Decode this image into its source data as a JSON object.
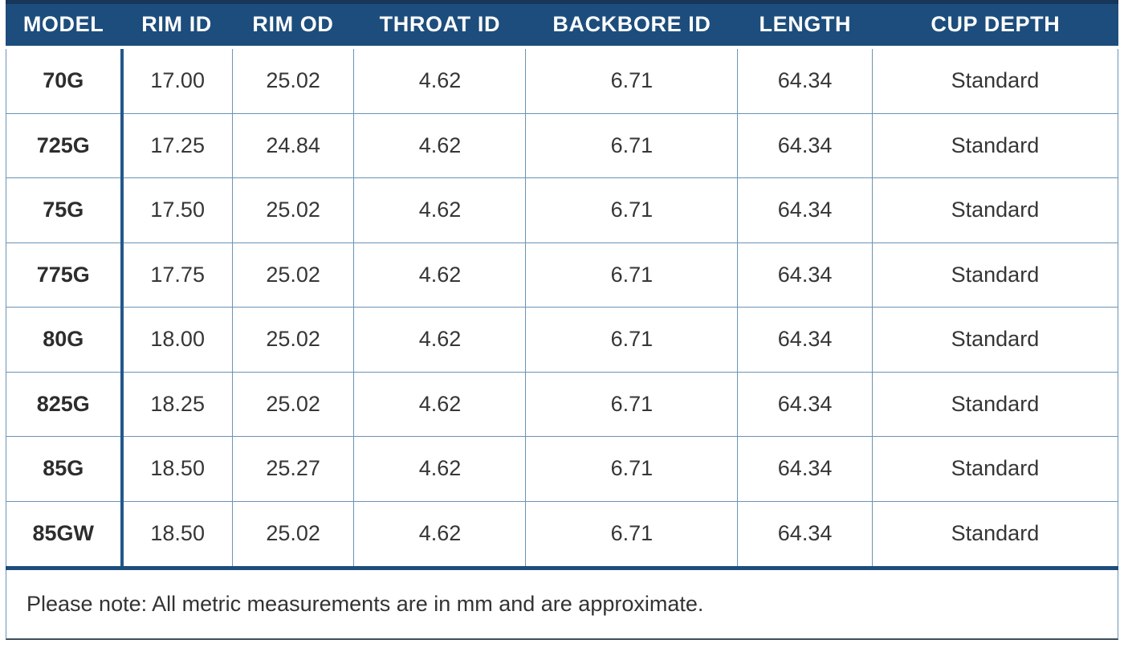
{
  "table": {
    "columns": [
      {
        "key": "model",
        "label": "MODEL"
      },
      {
        "key": "rim_id",
        "label": "RIM ID"
      },
      {
        "key": "rim_od",
        "label": "RIM OD"
      },
      {
        "key": "throat_id",
        "label": "THROAT ID"
      },
      {
        "key": "backbore_id",
        "label": "BACKBORE ID"
      },
      {
        "key": "length",
        "label": "LENGTH"
      },
      {
        "key": "cup_depth",
        "label": "CUP DEPTH"
      }
    ],
    "rows": [
      [
        "70G",
        "17.00",
        "25.02",
        "4.62",
        "6.71",
        "64.34",
        "Standard"
      ],
      [
        "725G",
        "17.25",
        "24.84",
        "4.62",
        "6.71",
        "64.34",
        "Standard"
      ],
      [
        "75G",
        "17.50",
        "25.02",
        "4.62",
        "6.71",
        "64.34",
        "Standard"
      ],
      [
        "775G",
        "17.75",
        "25.02",
        "4.62",
        "6.71",
        "64.34",
        "Standard"
      ],
      [
        "80G",
        "18.00",
        "25.02",
        "4.62",
        "6.71",
        "64.34",
        "Standard"
      ],
      [
        "825G",
        "18.25",
        "25.02",
        "4.62",
        "6.71",
        "64.34",
        "Standard"
      ],
      [
        "85G",
        "18.50",
        "25.27",
        "4.62",
        "6.71",
        "64.34",
        "Standard"
      ],
      [
        "85GW",
        "18.50",
        "25.02",
        "4.62",
        "6.71",
        "64.34",
        "Standard"
      ]
    ],
    "note": "Please note: All metric measurements are in mm and are approximate."
  },
  "colors": {
    "header_bg": "#1d4d7c",
    "header_top_border": "#16365a",
    "header_text": "#ffffff",
    "grid_line": "#6b93b7",
    "model_divider": "#23588a",
    "section_rule": "#1d4d7c",
    "body_text": "#363636",
    "note_text": "#333333",
    "outer_bottom": "#3f4e5c"
  }
}
